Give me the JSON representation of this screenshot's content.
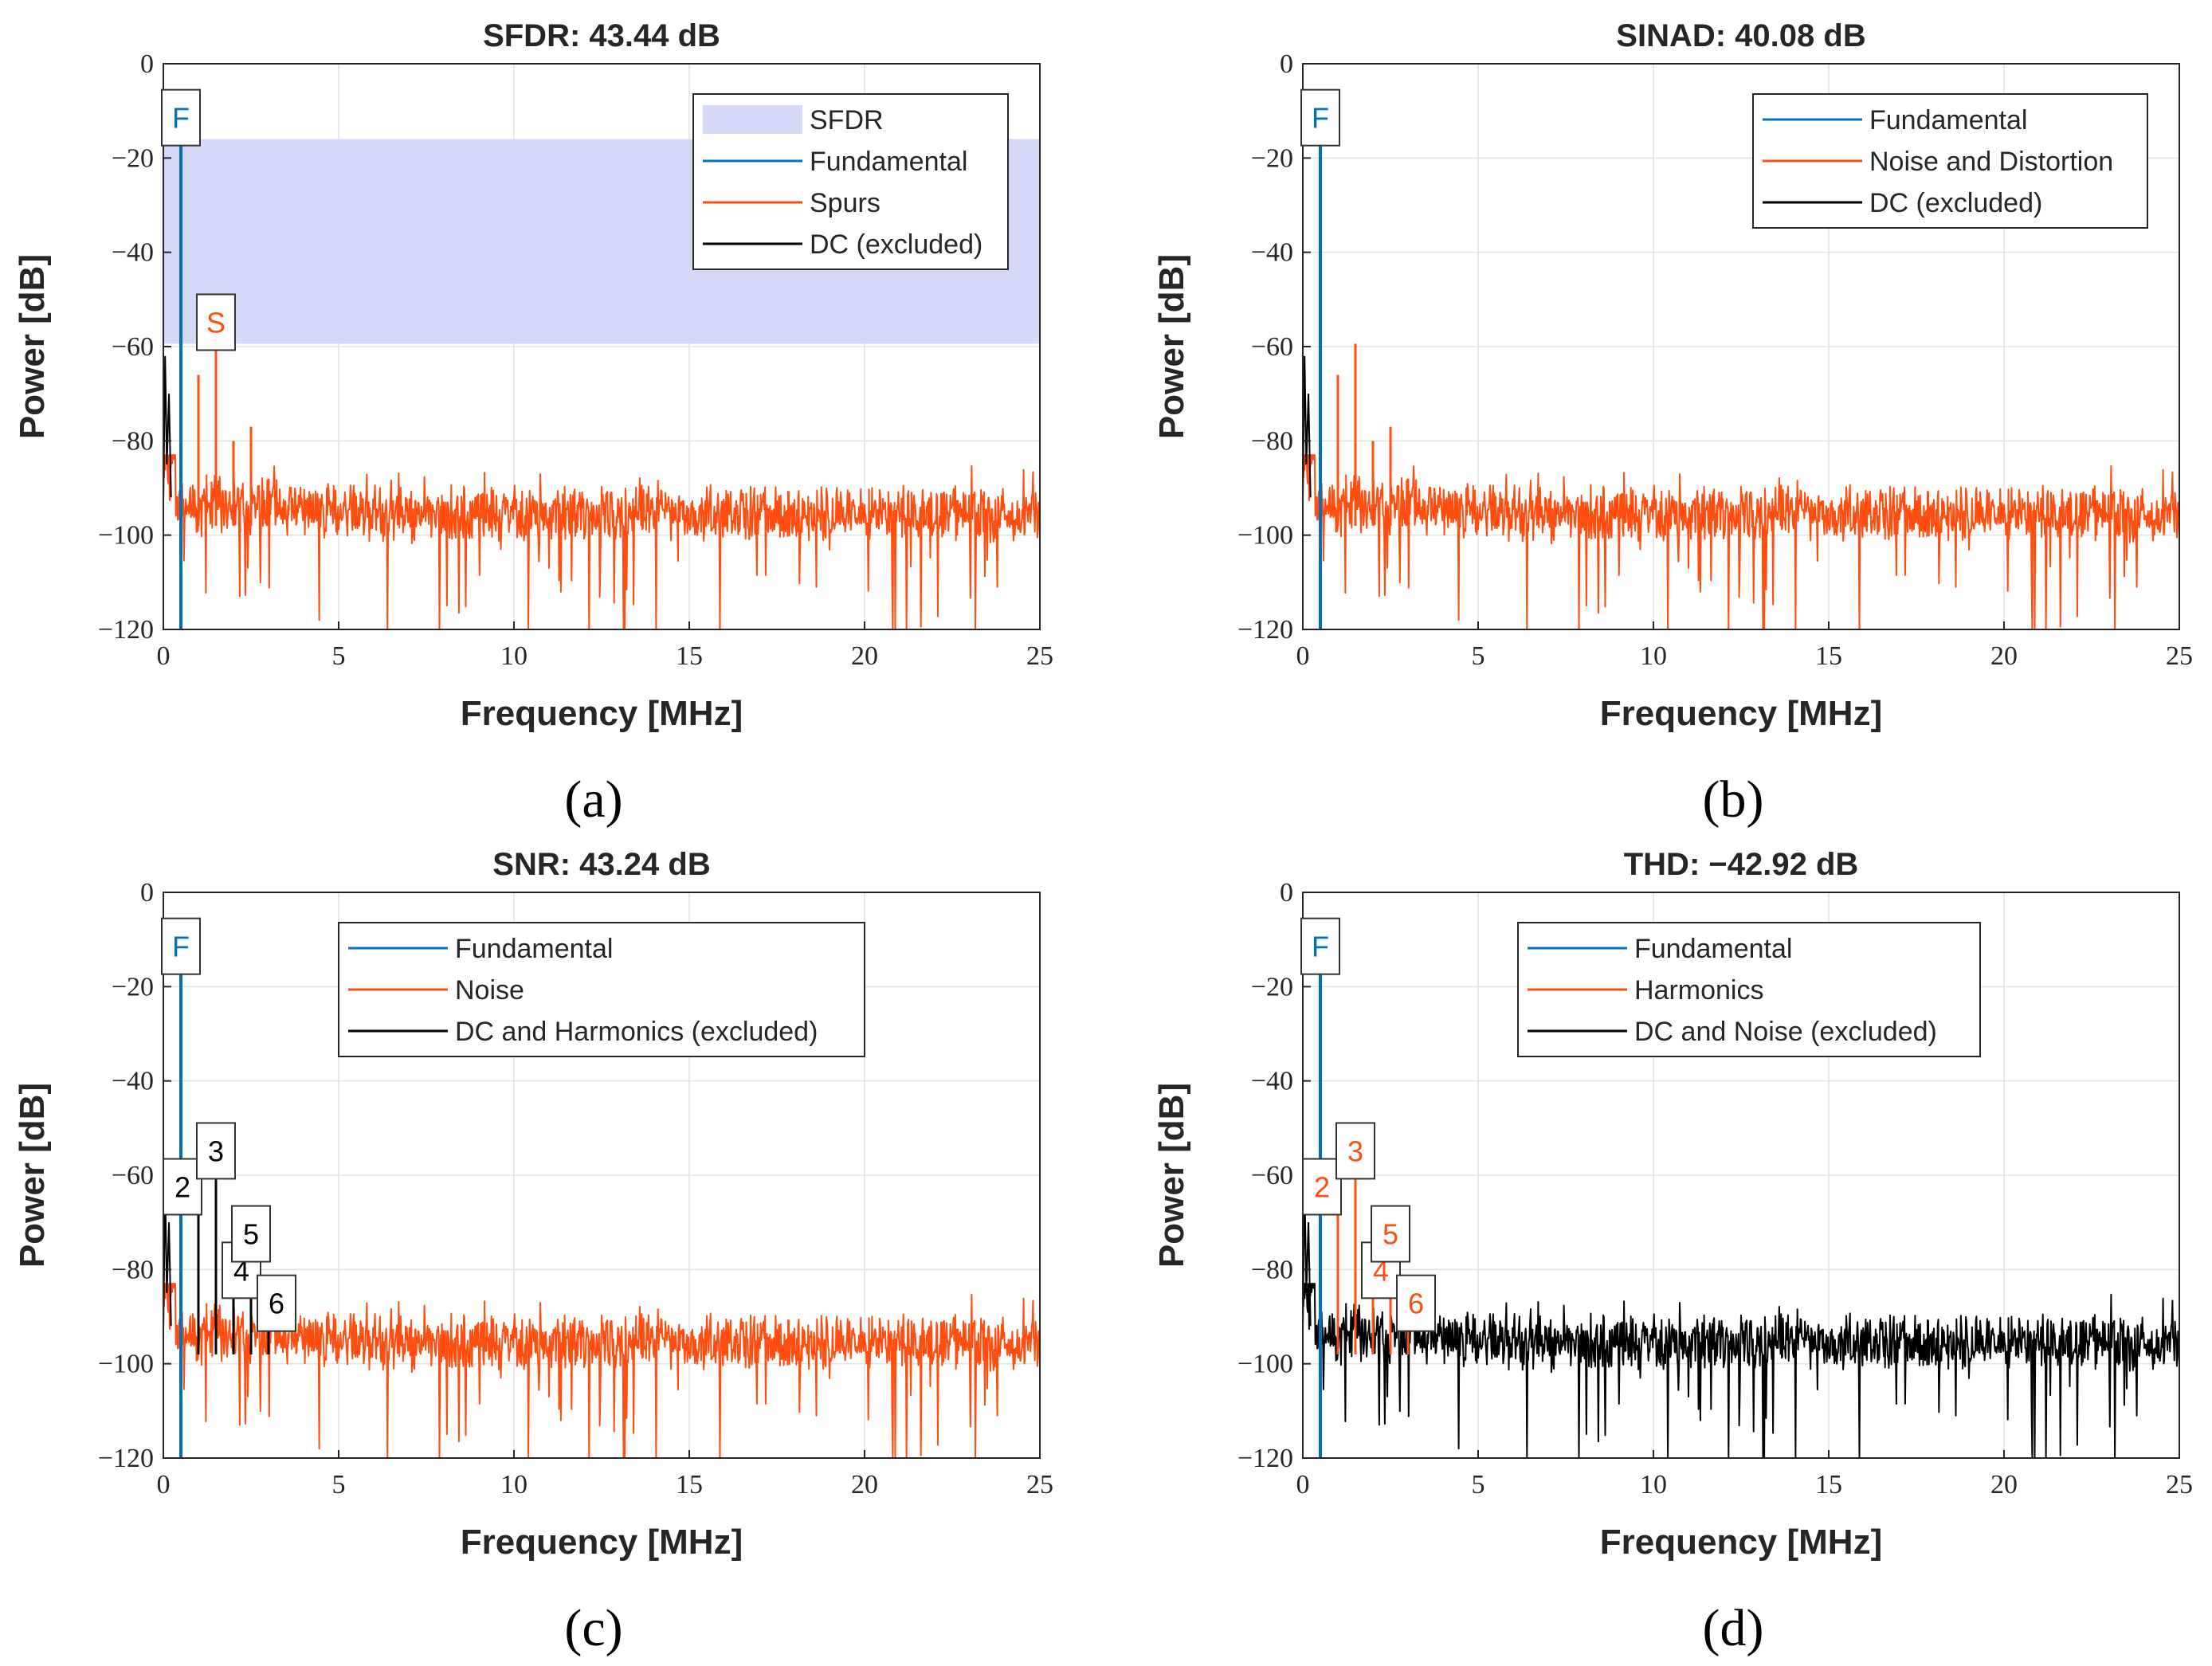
{
  "colors": {
    "fundamental": "#0072BD",
    "spur": "#FF4E0F",
    "excluded": "#000000",
    "sfdr_band": "#D6D8F8",
    "grid": "#E3E3E3",
    "axis": "#262626"
  },
  "chart_data": [
    {
      "id": "a",
      "type": "line",
      "title": "SFDR:  43.44 dB",
      "caption": "(a)",
      "xlabel": "Frequency [MHz]",
      "ylabel": "Power [dB]",
      "xlim": [
        0,
        25
      ],
      "ylim": [
        -120,
        0
      ],
      "xticks": [
        0,
        5,
        10,
        15,
        20,
        25
      ],
      "xtick_labels": [
        "0",
        "5",
        "10",
        "15",
        "20",
        "25"
      ],
      "yticks": [
        0,
        -20,
        -40,
        -60,
        -80,
        -100,
        -120
      ],
      "ytick_labels": [
        "0",
        "−20",
        "−40",
        "−60",
        "−80",
        "−100",
        "−120"
      ],
      "noise_role": "spur",
      "fundamental": {
        "freq": 0.5,
        "power": -16
      },
      "sfdr_band": {
        "from": -16,
        "to": -59.4
      },
      "harmonics": [
        {
          "n": "2",
          "freq": 1.0,
          "power": -66,
          "role": "spur"
        },
        {
          "n": "3",
          "freq": 1.5,
          "power": -59.4,
          "role": "spur"
        },
        {
          "n": "4",
          "freq": 2.0,
          "power": -80,
          "role": "spur"
        },
        {
          "n": "5",
          "freq": 2.5,
          "power": -77,
          "role": "spur"
        },
        {
          "n": "6",
          "freq": 3.0,
          "power": -88,
          "role": "spur"
        }
      ],
      "markers": [
        {
          "text": "F",
          "freq": 0.5,
          "power": -16,
          "color_key": "fundamental"
        },
        {
          "text": "S",
          "freq": 1.5,
          "power": -59.4,
          "color_key": "spur"
        }
      ],
      "legend": {
        "position": "top-right",
        "entries": [
          {
            "label": "SFDR",
            "style": "patch",
            "color_key": "sfdr_band"
          },
          {
            "label": "Fundamental",
            "style": "line",
            "color_key": "fundamental"
          },
          {
            "label": "Spurs",
            "style": "line",
            "color_key": "spur"
          },
          {
            "label": "DC (excluded)",
            "style": "line",
            "color_key": "excluded"
          }
        ]
      }
    },
    {
      "id": "b",
      "type": "line",
      "title": "SINAD:  40.08 dB",
      "caption": "(b)",
      "xlabel": "Frequency [MHz]",
      "ylabel": "Power [dB]",
      "xlim": [
        0,
        25
      ],
      "ylim": [
        -120,
        0
      ],
      "xticks": [
        0,
        5,
        10,
        15,
        20,
        25
      ],
      "xtick_labels": [
        "0",
        "5",
        "10",
        "15",
        "20",
        "25"
      ],
      "yticks": [
        0,
        -20,
        -40,
        -60,
        -80,
        -100,
        -120
      ],
      "ytick_labels": [
        "0",
        "−20",
        "−40",
        "−60",
        "−80",
        "−100",
        "−120"
      ],
      "noise_role": "spur",
      "fundamental": {
        "freq": 0.5,
        "power": -16
      },
      "harmonics": [
        {
          "n": "2",
          "freq": 1.0,
          "power": -66,
          "role": "spur"
        },
        {
          "n": "3",
          "freq": 1.5,
          "power": -59.4,
          "role": "spur"
        },
        {
          "n": "4",
          "freq": 2.0,
          "power": -80,
          "role": "spur"
        },
        {
          "n": "5",
          "freq": 2.5,
          "power": -77,
          "role": "spur"
        },
        {
          "n": "6",
          "freq": 3.0,
          "power": -88,
          "role": "spur"
        }
      ],
      "markers": [
        {
          "text": "F",
          "freq": 0.5,
          "power": -16,
          "color_key": "fundamental"
        }
      ],
      "legend": {
        "position": "top-right",
        "entries": [
          {
            "label": "Fundamental",
            "style": "line",
            "color_key": "fundamental"
          },
          {
            "label": "Noise and Distortion",
            "style": "line",
            "color_key": "spur"
          },
          {
            "label": "DC (excluded)",
            "style": "line",
            "color_key": "excluded"
          }
        ]
      }
    },
    {
      "id": "c",
      "type": "line",
      "title": "SNR:  43.24 dB",
      "caption": "(c)",
      "xlabel": "Frequency [MHz]",
      "ylabel": "Power [dB]",
      "xlim": [
        0,
        25
      ],
      "ylim": [
        -120,
        0
      ],
      "xticks": [
        0,
        5,
        10,
        15,
        20,
        25
      ],
      "xtick_labels": [
        "0",
        "5",
        "10",
        "15",
        "20",
        "25"
      ],
      "yticks": [
        0,
        -20,
        -40,
        -60,
        -80,
        -100,
        -120
      ],
      "ytick_labels": [
        "0",
        "−20",
        "−40",
        "−60",
        "−80",
        "−100",
        "−120"
      ],
      "noise_role": "spur",
      "fundamental": {
        "freq": 0.5,
        "power": -16
      },
      "harmonics": [
        {
          "n": "2",
          "freq": 1.0,
          "power": -66,
          "role": "excluded"
        },
        {
          "n": "3",
          "freq": 1.5,
          "power": -59.4,
          "role": "excluded"
        },
        {
          "n": "4",
          "freq": 2.0,
          "power": -80,
          "role": "excluded"
        },
        {
          "n": "5",
          "freq": 2.5,
          "power": -77,
          "role": "excluded"
        },
        {
          "n": "6",
          "freq": 3.0,
          "power": -88,
          "role": "excluded"
        }
      ],
      "markers": [
        {
          "text": "F",
          "freq": 0.5,
          "power": -16,
          "color_key": "fundamental"
        },
        {
          "text": "2",
          "freq": 1.0,
          "power": -66,
          "color_key": "excluded"
        },
        {
          "text": "3",
          "freq": 1.5,
          "power": -59.4,
          "color_key": "excluded"
        },
        {
          "text": "4",
          "freq": 2.0,
          "power": -80,
          "color_key": "excluded"
        },
        {
          "text": "5",
          "freq": 2.5,
          "power": -77,
          "color_key": "excluded"
        },
        {
          "text": "6",
          "freq": 3.0,
          "power": -88,
          "color_key": "excluded"
        }
      ],
      "legend": {
        "position": "top-right",
        "entries": [
          {
            "label": "Fundamental",
            "style": "line",
            "color_key": "fundamental"
          },
          {
            "label": "Noise",
            "style": "line",
            "color_key": "spur"
          },
          {
            "label": "DC and Harmonics (excluded)",
            "style": "line",
            "color_key": "excluded"
          }
        ]
      }
    },
    {
      "id": "d",
      "type": "line",
      "title": "THD:  −42.92 dB",
      "caption": "(d)",
      "xlabel": "Frequency [MHz]",
      "ylabel": "Power [dB]",
      "xlim": [
        0,
        25
      ],
      "ylim": [
        -120,
        0
      ],
      "xticks": [
        0,
        5,
        10,
        15,
        20,
        25
      ],
      "xtick_labels": [
        "0",
        "5",
        "10",
        "15",
        "20",
        "25"
      ],
      "yticks": [
        0,
        -20,
        -40,
        -60,
        -80,
        -100,
        -120
      ],
      "ytick_labels": [
        "0",
        "−20",
        "−40",
        "−60",
        "−80",
        "−100",
        "−120"
      ],
      "noise_role": "excluded",
      "fundamental": {
        "freq": 0.5,
        "power": -16
      },
      "harmonics": [
        {
          "n": "2",
          "freq": 1.0,
          "power": -66,
          "role": "spur"
        },
        {
          "n": "3",
          "freq": 1.5,
          "power": -59.4,
          "role": "spur"
        },
        {
          "n": "4",
          "freq": 2.0,
          "power": -80,
          "role": "spur"
        },
        {
          "n": "5",
          "freq": 2.5,
          "power": -77,
          "role": "spur"
        },
        {
          "n": "6",
          "freq": 3.0,
          "power": -88,
          "role": "spur"
        }
      ],
      "markers": [
        {
          "text": "F",
          "freq": 0.5,
          "power": -16,
          "color_key": "fundamental"
        },
        {
          "text": "2",
          "freq": 1.0,
          "power": -66,
          "color_key": "spur"
        },
        {
          "text": "3",
          "freq": 1.5,
          "power": -59.4,
          "color_key": "spur"
        },
        {
          "text": "4",
          "freq": 2.0,
          "power": -80,
          "color_key": "spur"
        },
        {
          "text": "5",
          "freq": 2.5,
          "power": -77,
          "color_key": "spur"
        },
        {
          "text": "6",
          "freq": 3.0,
          "power": -88,
          "color_key": "spur"
        }
      ],
      "legend": {
        "position": "top-right",
        "entries": [
          {
            "label": "Fundamental",
            "style": "line",
            "color_key": "fundamental"
          },
          {
            "label": "Harmonics",
            "style": "line",
            "color_key": "spur"
          },
          {
            "label": "DC and Noise (excluded)",
            "style": "line",
            "color_key": "excluded"
          }
        ]
      }
    }
  ]
}
